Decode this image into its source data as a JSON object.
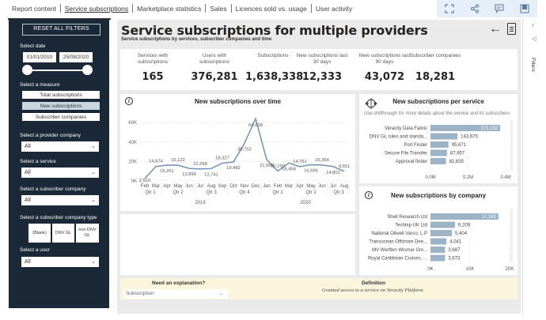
{
  "nav": {
    "tabs": [
      "Report content",
      "Service subscriptions",
      "Marketplace statistics",
      "Sales",
      "Licences sold vs. usage",
      "User activity"
    ],
    "active_tab": "Service subscriptions",
    "toolbar_icons": [
      "focus-mode-icon",
      "share-icon",
      "comment-icon",
      "bookmark-icon"
    ]
  },
  "sidebar": {
    "reset_label": "RESET ALL FILTERS",
    "date_label": "Select date",
    "date_from": "01/01/2010",
    "date_to": "25/08/2020",
    "measure_label": "Select a measure",
    "measures": [
      "Total subscriptions",
      "New subscriptions",
      "Subscriber companies"
    ],
    "active_measure": "New subscriptions",
    "provider_label": "Select a provider company",
    "provider_value": "All",
    "service_label": "Select a service",
    "service_value": "All",
    "subscriber_label": "Select a subscriber company",
    "subscriber_value": "All",
    "type_label": "Select a subscriber company type",
    "types": [
      "(Blank)",
      "DNV GL",
      "non DNV GL"
    ],
    "user_label": "Select a user",
    "user_value": "All"
  },
  "header": {
    "title": "Service subscriptions for multiple providers",
    "subtitle": "Service subscriptions by services, subscriber companies and time"
  },
  "kpis": [
    {
      "label": "Services with subscriptions",
      "value": "165"
    },
    {
      "label": "Users with subscriptions",
      "value": "376,281"
    },
    {
      "label": "Subscriptions",
      "value": "1,638,338"
    },
    {
      "label": "New subscriptions last 30 days",
      "value": "12,333"
    },
    {
      "label": "New subscriptions last 90 days",
      "value": "43,072"
    },
    {
      "label": "Subscriber companies",
      "value": "18,281"
    }
  ],
  "bottom": {
    "need_label": "Need an explanation?",
    "select_value": "Subscription",
    "definition_label": "Definition",
    "definition_text": "Granted access to a service on Veracity Platform."
  },
  "filters_pane": {
    "label": "Filters"
  },
  "chart_data": [
    {
      "type": "line",
      "title": "New subscriptions over time",
      "x": [
        "Feb",
        "Mar",
        "Apr",
        "May",
        "Jun",
        "Jul",
        "Aug",
        "Sep",
        "Oct",
        "Nov",
        "Dec",
        "Jan",
        "Feb",
        "Mar",
        "Apr",
        "May",
        "Jun",
        "Jul",
        "Aug"
      ],
      "quarters": [
        {
          "label": "Qtr 1",
          "span": 2
        },
        {
          "label": "Qtr 2",
          "span": 3
        },
        {
          "label": "Qtr 3",
          "span": 3
        },
        {
          "label": "Qtr 4",
          "span": 3
        },
        {
          "label": "Qtr 1",
          "span": 3
        },
        {
          "label": "Qtr 2",
          "span": 3
        },
        {
          "label": "Qtr 3",
          "span": 2
        }
      ],
      "years": [
        {
          "label": "2019",
          "span": 11
        },
        {
          "label": "2020",
          "span": 8
        }
      ],
      "values": [
        2510,
        14874,
        16261,
        16122,
        12899,
        12268,
        12741,
        18327,
        19482,
        38752,
        64008,
        21960,
        10160,
        18458,
        14761,
        16666,
        16364,
        14801,
        9811
      ],
      "data_labels": [
        "2,510",
        "14,874",
        "16,261",
        "16,122",
        "12,899",
        "12,268",
        "12,741",
        "18,327",
        "19,482",
        "38,752",
        "64,008",
        "21,960",
        "10,160",
        "18,458",
        "14,761",
        "16,666",
        "16,364",
        "14,801",
        "9,811"
      ],
      "yticks": [
        "0K",
        "20K",
        "40K",
        "60K"
      ],
      "ylim": [
        0,
        65000
      ],
      "color": "#6f92b0"
    },
    {
      "type": "bar",
      "orientation": "horizontal",
      "title": "New subscriptions per service",
      "note": "Use drillthrough for more details about the service and its subscribers",
      "categories": [
        "Veracity Data Fabric",
        "DNV GL rules and standa...",
        "Port Finder",
        "Secure File Transfer",
        "Approval finder"
      ],
      "values": [
        371152,
        143675,
        95671,
        87957,
        82635
      ],
      "data_labels": [
        "371,152",
        "143,675",
        "95,671",
        "87,957",
        "82,635"
      ],
      "xticks": [
        "0.0M",
        "0.2M",
        "0.4M"
      ],
      "xlim": [
        0,
        400000
      ],
      "color": "#9db3c6"
    },
    {
      "type": "bar",
      "orientation": "horizontal",
      "title": "New subscriptions by company",
      "categories": [
        "Shell Research Ltd",
        "Technip UK Ltd",
        "National Oilwell Varco, L.P",
        "Transocean Offshore Dee...",
        "MV Werften Wismar Gm...",
        "Royal Caribbean Cruises, ..."
      ],
      "values": [
        17163,
        6209,
        5404,
        4041,
        3687,
        3673
      ],
      "data_labels": [
        "17,163",
        "6,209",
        "5,404",
        "4,041",
        "3,687",
        "3,673"
      ],
      "xticks": [
        "0K",
        "10K",
        "20K"
      ],
      "xlim": [
        0,
        20000
      ],
      "color": "#9db3c6"
    }
  ]
}
